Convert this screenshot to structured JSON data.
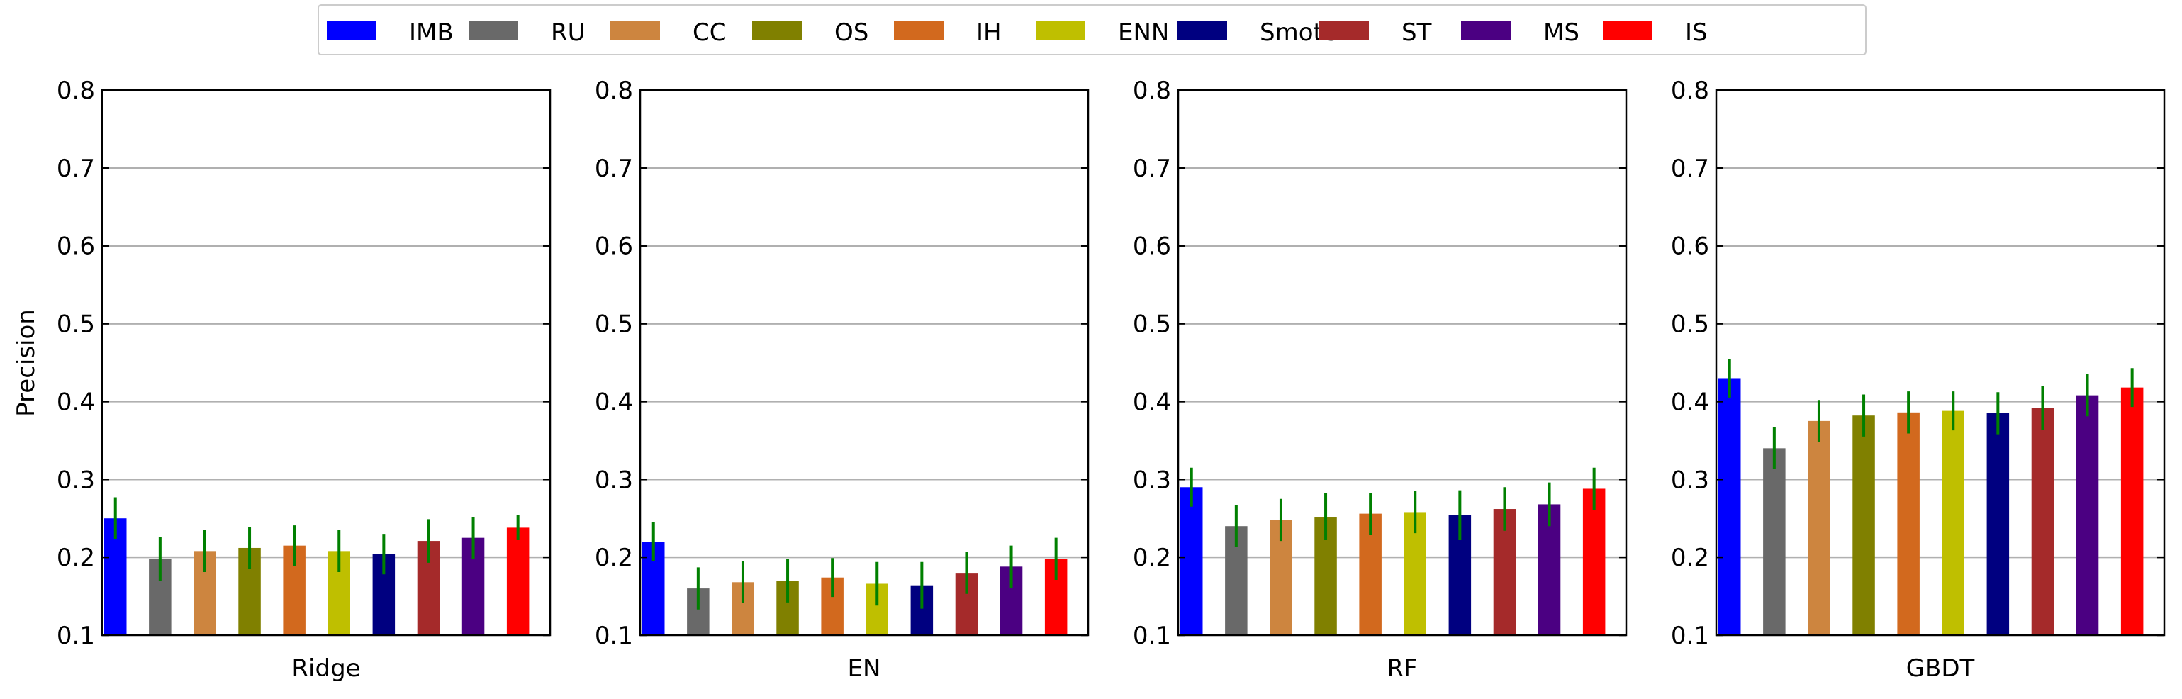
{
  "legend": {
    "placement": "top-center",
    "entries": [
      {
        "label": "IMB",
        "color": "#0000ff"
      },
      {
        "label": "RU",
        "color": "#696969"
      },
      {
        "label": "CC",
        "color": "#cd853f"
      },
      {
        "label": "OS",
        "color": "#808000"
      },
      {
        "label": "IH",
        "color": "#d2691e"
      },
      {
        "label": "ENN",
        "color": "#bfbf00"
      },
      {
        "label": "Smote",
        "color": "#000080"
      },
      {
        "label": "ST",
        "color": "#a52a2a"
      },
      {
        "label": "MS",
        "color": "#4b0082"
      },
      {
        "label": "IS",
        "color": "#ff0000"
      }
    ]
  },
  "ylabel": "Precision",
  "error_color": "#008000",
  "chart_data": [
    {
      "type": "bar",
      "xlabel": "Ridge",
      "ylim": [
        0.1,
        0.8
      ],
      "yticks": [
        "0.1",
        "0.2",
        "0.3",
        "0.4",
        "0.5",
        "0.6",
        "0.7",
        "0.8"
      ],
      "grid": true,
      "categories": [
        "IMB",
        "RU",
        "CC",
        "OS",
        "IH",
        "ENN",
        "Smote",
        "ST",
        "MS",
        "IS"
      ],
      "values": [
        0.25,
        0.198,
        0.208,
        0.212,
        0.215,
        0.208,
        0.204,
        0.221,
        0.225,
        0.238
      ],
      "errors": [
        0.027,
        0.028,
        0.027,
        0.027,
        0.026,
        0.027,
        0.026,
        0.028,
        0.027,
        0.016
      ]
    },
    {
      "type": "bar",
      "xlabel": "EN",
      "ylim": [
        0.1,
        0.8
      ],
      "yticks": [
        "0.1",
        "0.2",
        "0.3",
        "0.4",
        "0.5",
        "0.6",
        "0.7",
        "0.8"
      ],
      "grid": true,
      "categories": [
        "IMB",
        "RU",
        "CC",
        "OS",
        "IH",
        "ENN",
        "Smote",
        "ST",
        "MS",
        "IS"
      ],
      "values": [
        0.22,
        0.16,
        0.168,
        0.17,
        0.174,
        0.166,
        0.164,
        0.18,
        0.188,
        0.198
      ],
      "errors": [
        0.025,
        0.027,
        0.027,
        0.028,
        0.025,
        0.028,
        0.03,
        0.027,
        0.027,
        0.027
      ]
    },
    {
      "type": "bar",
      "xlabel": "RF",
      "ylim": [
        0.1,
        0.8
      ],
      "yticks": [
        "0.1",
        "0.2",
        "0.3",
        "0.4",
        "0.5",
        "0.6",
        "0.7",
        "0.8"
      ],
      "grid": true,
      "categories": [
        "IMB",
        "RU",
        "CC",
        "OS",
        "IH",
        "ENN",
        "Smote",
        "ST",
        "MS",
        "IS"
      ],
      "values": [
        0.29,
        0.24,
        0.248,
        0.252,
        0.256,
        0.258,
        0.254,
        0.262,
        0.268,
        0.288
      ],
      "errors": [
        0.025,
        0.027,
        0.027,
        0.03,
        0.027,
        0.027,
        0.032,
        0.028,
        0.028,
        0.027
      ]
    },
    {
      "type": "bar",
      "xlabel": "GBDT",
      "ylim": [
        0.1,
        0.8
      ],
      "yticks": [
        "0.1",
        "0.2",
        "0.3",
        "0.4",
        "0.5",
        "0.6",
        "0.7",
        "0.8"
      ],
      "grid": true,
      "categories": [
        "IMB",
        "RU",
        "CC",
        "OS",
        "IH",
        "ENN",
        "Smote",
        "ST",
        "MS",
        "IS"
      ],
      "values": [
        0.43,
        0.34,
        0.375,
        0.382,
        0.386,
        0.388,
        0.385,
        0.392,
        0.408,
        0.418
      ],
      "errors": [
        0.025,
        0.027,
        0.027,
        0.027,
        0.027,
        0.025,
        0.027,
        0.028,
        0.027,
        0.025
      ]
    }
  ]
}
